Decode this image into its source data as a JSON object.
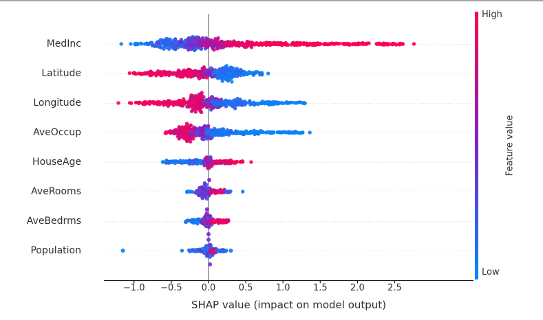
{
  "chart_data": {
    "type": "beeswarm",
    "style": "shap-summary-plot",
    "title": "",
    "xlabel": "SHAP value (impact on model output)",
    "xlim": [
      -1.41,
      3.56
    ],
    "grid": "dotted-horizontal",
    "zero_line_at": 0.0,
    "x_ticks": [
      {
        "value": -1.0,
        "label": "−1.0"
      },
      {
        "value": -0.5,
        "label": "−0.5"
      },
      {
        "value": 0.0,
        "label": "0.0"
      },
      {
        "value": 0.5,
        "label": "0.5"
      },
      {
        "value": 1.0,
        "label": "1.0"
      },
      {
        "value": 1.5,
        "label": "1.5"
      },
      {
        "value": 2.0,
        "label": "2.0"
      },
      {
        "value": 2.5,
        "label": "2.5"
      }
    ],
    "colors": {
      "low_value": "#008bfb",
      "mid_value": "#7f23cd",
      "high_value": "#ff0051",
      "gridline": "#d6d6d6",
      "zero_line": "#8c8c8c",
      "axis": "#1a1a1a",
      "text": "#2e2e2e"
    },
    "colorbar": {
      "title": "Feature value",
      "high_label": "High",
      "low_label": "Low",
      "position": "right"
    },
    "features": [
      {
        "name": "MedInc",
        "shap_range": [
          -1.18,
          2.77
        ],
        "clusters": [
          {
            "kind": "u",
            "a": -1.19,
            "b": -1.16,
            "n": 1,
            "t": 0,
            "v": 0.03,
            "vs": 0.02
          },
          {
            "kind": "u",
            "a": -1.06,
            "b": -1.03,
            "n": 1,
            "t": 0,
            "v": 0.05,
            "vs": 0.02
          },
          {
            "kind": "u",
            "a": -1.0,
            "b": -0.8,
            "n": 14,
            "t": 1.5,
            "v": 0.06,
            "vs": 0.04
          },
          {
            "kind": "g",
            "c": -0.52,
            "w": 0.13,
            "n": 130,
            "t": 13,
            "v": 0.15,
            "vs": 0.12
          },
          {
            "kind": "g",
            "c": -0.17,
            "w": 0.11,
            "n": 150,
            "t": 15,
            "v": 0.38,
            "vs": 0.22
          },
          {
            "kind": "g",
            "c": 0.08,
            "w": 0.1,
            "n": 120,
            "t": 12,
            "v": 0.68,
            "vs": 0.16
          },
          {
            "kind": "u",
            "a": 0.22,
            "b": 0.62,
            "n": 85,
            "t": 5.5,
            "v": 0.88,
            "vs": 0.1
          },
          {
            "kind": "u",
            "a": 0.62,
            "b": 1.45,
            "n": 115,
            "t": 3,
            "v": 0.96,
            "vs": 0.05
          },
          {
            "kind": "u",
            "a": 1.45,
            "b": 2.64,
            "n": 105,
            "t": 1.8,
            "v": 1.0,
            "vs": 0.02
          },
          {
            "kind": "u",
            "a": 2.75,
            "b": 2.78,
            "n": 1,
            "t": 0,
            "v": 1.0,
            "vs": 0
          }
        ],
        "dots": []
      },
      {
        "name": "Latitude",
        "shap_range": [
          -1.06,
          0.84
        ],
        "clusters": [
          {
            "kind": "u",
            "a": -1.06,
            "b": -0.8,
            "n": 22,
            "t": 2,
            "v": 0.96,
            "vs": 0.04
          },
          {
            "kind": "u",
            "a": -0.8,
            "b": -0.5,
            "n": 55,
            "t": 4.5,
            "v": 0.93,
            "vs": 0.07
          },
          {
            "kind": "g",
            "c": -0.3,
            "w": 0.11,
            "n": 110,
            "t": 8,
            "v": 0.88,
            "vs": 0.1
          },
          {
            "kind": "g",
            "c": -0.08,
            "w": 0.06,
            "n": 90,
            "t": 11,
            "v": 0.82,
            "vs": 0.15
          },
          {
            "kind": "g",
            "c": 0.04,
            "w": 0.04,
            "n": 45,
            "t": 9,
            "v": 0.5,
            "vs": 0.3
          },
          {
            "kind": "g",
            "c": 0.27,
            "w": 0.09,
            "n": 160,
            "t": 19,
            "v": 0.12,
            "vs": 0.12
          },
          {
            "kind": "u",
            "a": 0.45,
            "b": 0.72,
            "n": 28,
            "t": 3.5,
            "v": 0.08,
            "vs": 0.05
          },
          {
            "kind": "u",
            "a": 0.8,
            "b": 0.84,
            "n": 1,
            "t": 0,
            "v": 0.1,
            "vs": 0.02
          }
        ],
        "dots": []
      },
      {
        "name": "Longitude",
        "shap_range": [
          -1.22,
          1.3
        ],
        "clusters": [
          {
            "kind": "u",
            "a": -1.23,
            "b": -1.2,
            "n": 1,
            "t": 0,
            "v": 1.0,
            "vs": 0
          },
          {
            "kind": "u",
            "a": -1.07,
            "b": -1.03,
            "n": 2,
            "t": 0.5,
            "v": 0.97,
            "vs": 0.02
          },
          {
            "kind": "u",
            "a": -0.98,
            "b": -0.62,
            "n": 40,
            "t": 3,
            "v": 0.95,
            "vs": 0.05
          },
          {
            "kind": "u",
            "a": -0.62,
            "b": -0.32,
            "n": 70,
            "t": 6,
            "v": 0.92,
            "vs": 0.07
          },
          {
            "kind": "g",
            "c": -0.14,
            "w": 0.09,
            "n": 150,
            "t": 20,
            "v": 0.85,
            "vs": 0.12
          },
          {
            "kind": "g",
            "c": 0.07,
            "w": 0.06,
            "n": 100,
            "t": 16,
            "v": 0.48,
            "vs": 0.28
          },
          {
            "kind": "g",
            "c": 0.3,
            "w": 0.11,
            "n": 120,
            "t": 10,
            "v": 0.14,
            "vs": 0.1
          },
          {
            "kind": "u",
            "a": 0.55,
            "b": 0.95,
            "n": 55,
            "t": 3.5,
            "v": 0.07,
            "vs": 0.04
          },
          {
            "kind": "u",
            "a": 0.95,
            "b": 1.3,
            "n": 22,
            "t": 1.8,
            "v": 0.05,
            "vs": 0.03
          }
        ],
        "dots": []
      },
      {
        "name": "AveOccup",
        "shap_range": [
          -0.58,
          1.36
        ],
        "clusters": [
          {
            "kind": "u",
            "a": -0.58,
            "b": -0.46,
            "n": 10,
            "t": 2.5,
            "v": 0.95,
            "vs": 0.04
          },
          {
            "kind": "g",
            "c": -0.3,
            "w": 0.09,
            "n": 140,
            "t": 17,
            "v": 0.85,
            "vs": 0.14
          },
          {
            "kind": "g",
            "c": -0.06,
            "w": 0.08,
            "n": 140,
            "t": 17,
            "v": 0.45,
            "vs": 0.25
          },
          {
            "kind": "g",
            "c": 0.16,
            "w": 0.1,
            "n": 95,
            "t": 9,
            "v": 0.12,
            "vs": 0.1
          },
          {
            "kind": "u",
            "a": 0.36,
            "b": 0.72,
            "n": 55,
            "t": 3.5,
            "v": 0.06,
            "vs": 0.04
          },
          {
            "kind": "u",
            "a": 0.72,
            "b": 1.28,
            "n": 45,
            "t": 2.2,
            "v": 0.04,
            "vs": 0.02
          },
          {
            "kind": "u",
            "a": 1.34,
            "b": 1.37,
            "n": 1,
            "t": 0,
            "v": 0.05,
            "vs": 0
          }
        ],
        "dots": []
      },
      {
        "name": "HouseAge",
        "shap_range": [
          -0.65,
          0.57
        ],
        "clusters": [
          {
            "kind": "u",
            "a": -0.65,
            "b": -0.6,
            "n": 2,
            "t": 0.5,
            "v": 0.08,
            "vs": 0.03
          },
          {
            "kind": "u",
            "a": -0.58,
            "b": -0.26,
            "n": 45,
            "t": 2.8,
            "v": 0.1,
            "vs": 0.08
          },
          {
            "kind": "u",
            "a": -0.26,
            "b": -0.06,
            "n": 65,
            "t": 4.5,
            "v": 0.15,
            "vs": 0.12
          },
          {
            "kind": "g",
            "c": 0.0,
            "w": 0.035,
            "n": 100,
            "t": 13,
            "v": 0.6,
            "vs": 0.3
          },
          {
            "kind": "u",
            "a": 0.06,
            "b": 0.3,
            "n": 65,
            "t": 3.8,
            "v": 0.88,
            "vs": 0.1
          },
          {
            "kind": "u",
            "a": 0.3,
            "b": 0.46,
            "n": 16,
            "t": 2,
            "v": 0.95,
            "vs": 0.04
          },
          {
            "kind": "u",
            "a": 0.55,
            "b": 0.58,
            "n": 1,
            "t": 0,
            "v": 1.0,
            "vs": 0
          }
        ],
        "dots": [
          {
            "x": 0.01,
            "dy": 26,
            "v": 0.5,
            "r": 3
          }
        ]
      },
      {
        "name": "AveRooms",
        "shap_range": [
          -0.3,
          0.46
        ],
        "clusters": [
          {
            "kind": "u",
            "a": -0.3,
            "b": -0.21,
            "n": 6,
            "t": 1.5,
            "v": 0.1,
            "vs": 0.06
          },
          {
            "kind": "g",
            "c": -0.06,
            "w": 0.05,
            "n": 130,
            "t": 14,
            "v": 0.42,
            "vs": 0.28
          },
          {
            "kind": "u",
            "a": 0.02,
            "b": 0.22,
            "n": 45,
            "t": 3.5,
            "v": 0.85,
            "vs": 0.12
          },
          {
            "kind": "u",
            "a": 0.22,
            "b": 0.36,
            "n": 7,
            "t": 1.5,
            "v": 0.15,
            "vs": 0.1
          },
          {
            "kind": "u",
            "a": 0.44,
            "b": 0.47,
            "n": 1,
            "t": 0,
            "v": 0.08,
            "vs": 0
          }
        ],
        "dots": [
          {
            "x": -0.02,
            "dy": 26,
            "v": 0.5,
            "r": 3
          }
        ]
      },
      {
        "name": "AveBedrms",
        "shap_range": [
          -0.33,
          0.27
        ],
        "clusters": [
          {
            "kind": "u",
            "a": -0.33,
            "b": -0.25,
            "n": 7,
            "t": 1.8,
            "v": 0.08,
            "vs": 0.05
          },
          {
            "kind": "u",
            "a": -0.25,
            "b": -0.06,
            "n": 40,
            "t": 4,
            "v": 0.12,
            "vs": 0.1
          },
          {
            "kind": "g",
            "c": -0.01,
            "w": 0.035,
            "n": 110,
            "t": 14,
            "v": 0.45,
            "vs": 0.28
          },
          {
            "kind": "u",
            "a": 0.03,
            "b": 0.27,
            "n": 50,
            "t": 3.8,
            "v": 0.9,
            "vs": 0.08
          }
        ],
        "dots": [
          {
            "x": 0.0,
            "dy": 27,
            "v": 0.35,
            "r": 3
          },
          {
            "x": 0.0,
            "dy": 19,
            "v": 0.5,
            "r": 3
          }
        ]
      },
      {
        "name": "Population",
        "shap_range": [
          -1.15,
          0.3
        ],
        "clusters": [
          {
            "kind": "u",
            "a": -0.38,
            "b": -0.34,
            "n": 1,
            "t": 0,
            "v": 0.1,
            "vs": 0
          },
          {
            "kind": "u",
            "a": -0.28,
            "b": -0.1,
            "n": 26,
            "t": 2.5,
            "v": 0.12,
            "vs": 0.08
          },
          {
            "kind": "g",
            "c": 0.0,
            "w": 0.045,
            "n": 120,
            "t": 12,
            "v": 0.25,
            "vs": 0.22
          },
          {
            "kind": "u",
            "a": 0.02,
            "b": 0.1,
            "n": 28,
            "t": 5,
            "v": 0.78,
            "vs": 0.15
          },
          {
            "kind": "u",
            "a": 0.1,
            "b": 0.24,
            "n": 22,
            "t": 2.5,
            "v": 0.15,
            "vs": 0.1
          }
        ],
        "dots": [
          {
            "x": -1.15,
            "dy": 0,
            "v": 0.08,
            "r": 3
          },
          {
            "x": 0.3,
            "dy": 0,
            "v": 0.1,
            "r": 3
          },
          {
            "x": 0.02,
            "dy": 20,
            "v": 0.4,
            "r": 3
          }
        ]
      }
    ]
  }
}
